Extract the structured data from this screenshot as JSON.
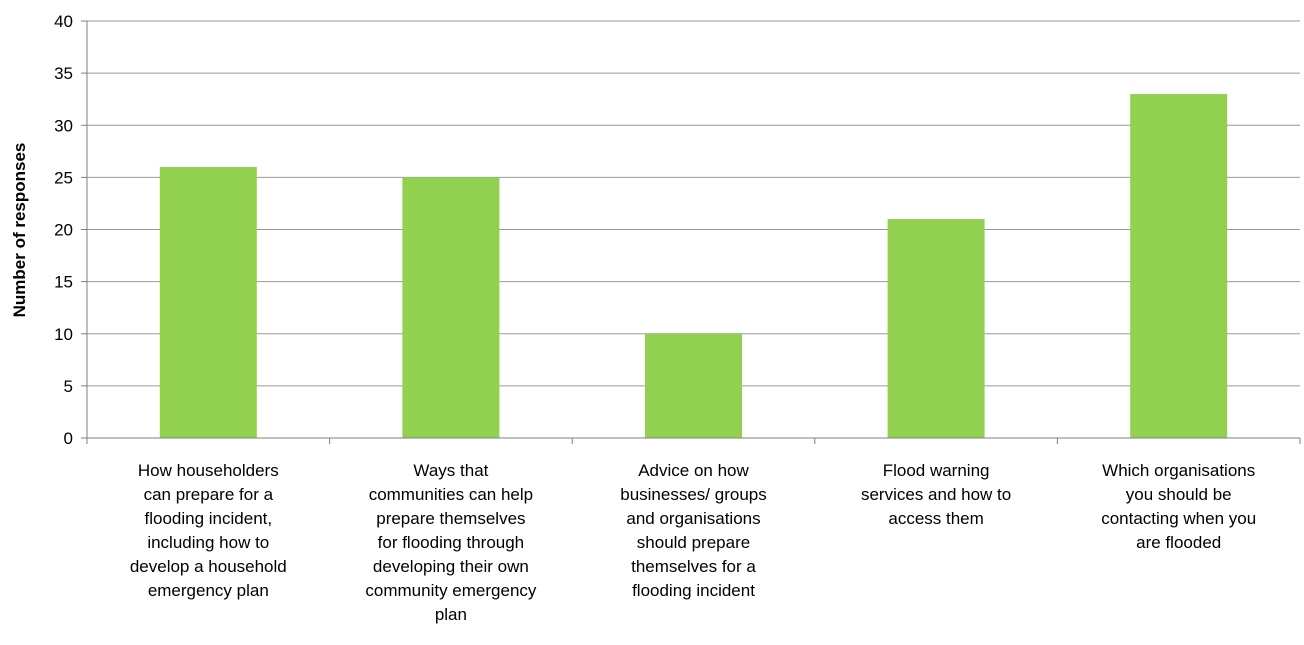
{
  "chart_data": {
    "type": "bar",
    "title": "",
    "xlabel": "",
    "ylabel": "Number of responses",
    "ylim": [
      0,
      40
    ],
    "yticks": [
      0,
      5,
      10,
      15,
      20,
      25,
      30,
      35,
      40
    ],
    "grid": true,
    "legend": "none",
    "bar_color": "#92d050",
    "categories": [
      [
        "How householders",
        "can prepare for a",
        "flooding incident,",
        "including how to",
        "develop a household",
        "emergency plan"
      ],
      [
        "Ways that",
        "communities can help",
        "prepare themselves",
        "for flooding through",
        "developing their own",
        "community  emergency",
        "plan"
      ],
      [
        "Advice on how",
        "businesses/ groups",
        "and organisations",
        "should prepare",
        "themselves for a",
        "flooding incident"
      ],
      [
        "Flood warning",
        "services and how to",
        "access them"
      ],
      [
        "Which organisations",
        "you should be",
        "contacting when you",
        "are flooded"
      ]
    ],
    "values": [
      26,
      25,
      10,
      21,
      33
    ]
  }
}
